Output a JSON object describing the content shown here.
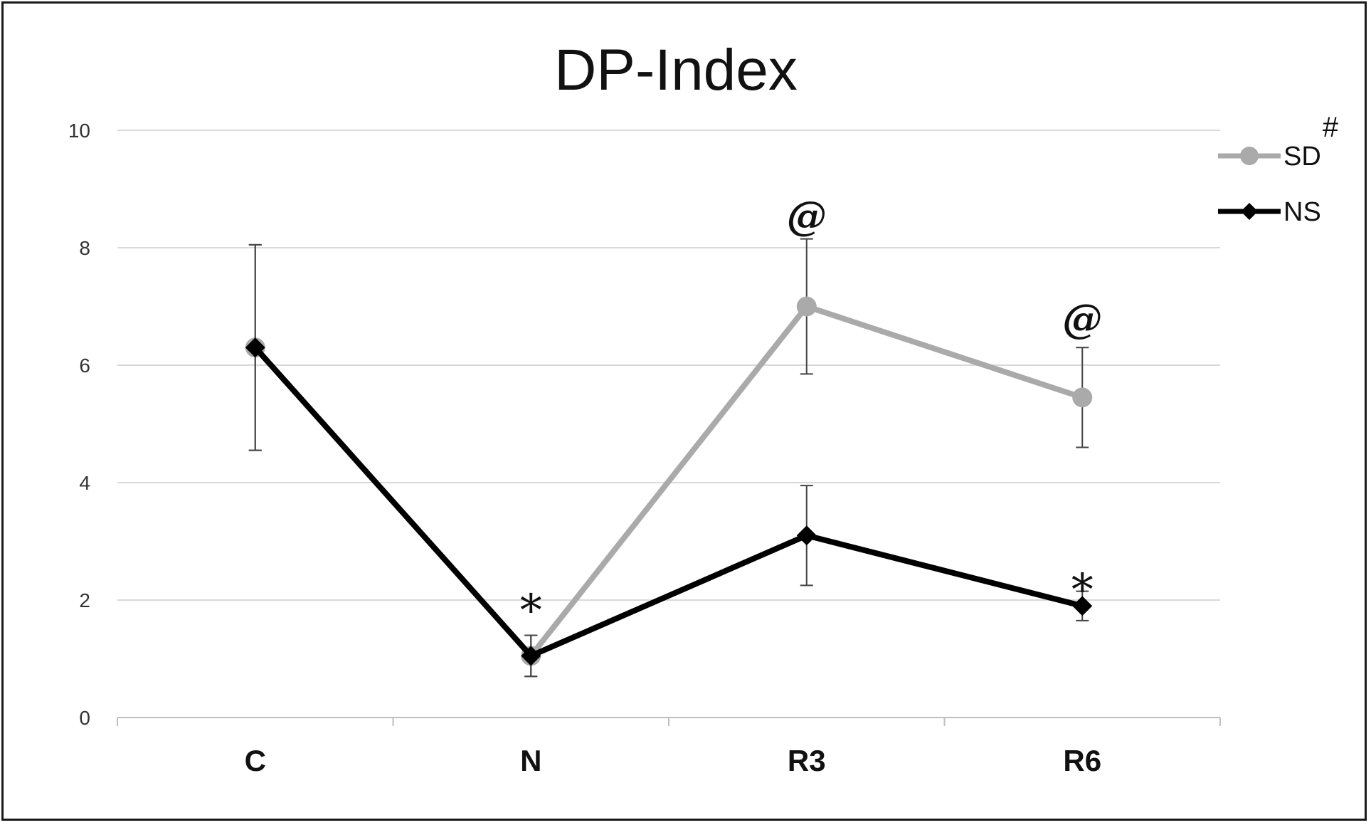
{
  "chart_data": {
    "type": "line",
    "title": "DP-Index",
    "xlabel": "",
    "ylabel": "",
    "categories": [
      "C",
      "N",
      "R3",
      "R6"
    ],
    "ylim": [
      0,
      10
    ],
    "yticks": [
      0,
      2,
      4,
      6,
      8,
      10
    ],
    "grid": "horizontal",
    "legend_position": "top-right",
    "series": [
      {
        "name": "SD",
        "color": "#aaaaaa",
        "marker": "circle",
        "values": [
          6.3,
          1.05,
          7.0,
          5.45
        ],
        "error": [
          1.75,
          0.35,
          1.15,
          0.85
        ]
      },
      {
        "name": "NS",
        "color": "#000000",
        "marker": "diamond",
        "values": [
          6.3,
          1.05,
          3.1,
          1.9
        ],
        "error": [
          1.75,
          0.35,
          0.85,
          0.25
        ]
      }
    ],
    "annotations": [
      {
        "text": "*",
        "category": "N",
        "y": 2.05,
        "style": "star"
      },
      {
        "text": "@",
        "category": "R3",
        "y": 8.55,
        "style": "at"
      },
      {
        "text": "@",
        "category": "R6",
        "y": 6.8,
        "style": "at"
      },
      {
        "text": "*",
        "category": "R6",
        "y": 2.4,
        "style": "star"
      }
    ],
    "legend_mark": "#"
  }
}
